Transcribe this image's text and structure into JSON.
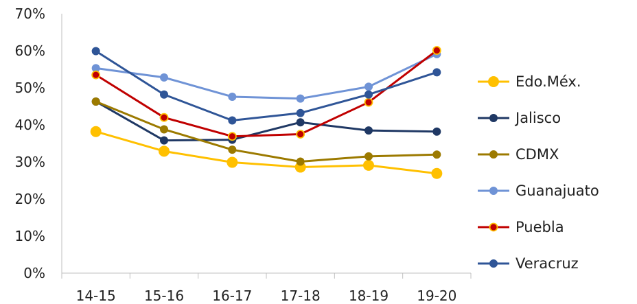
{
  "chart_data": {
    "type": "line",
    "categories": [
      "14-15",
      "15-16",
      "16-17",
      "17-18",
      "18-19",
      "19-20"
    ],
    "y_ticks": [
      "0%",
      "10%",
      "20%",
      "30%",
      "40%",
      "50%",
      "60%",
      "70%"
    ],
    "ylim": [
      0,
      70
    ],
    "grid": false,
    "legend_position": "right",
    "series": [
      {
        "name": "Edo.Méx.",
        "color": "#FFC000",
        "marker_fill": "#FFC000",
        "values": [
          38.2,
          32.9,
          29.9,
          28.6,
          29.1,
          26.9
        ]
      },
      {
        "name": "Jalisco",
        "color": "#1F3864",
        "marker_fill": "#1F3864",
        "values": [
          46.3,
          35.8,
          36.0,
          40.7,
          38.5,
          38.2
        ]
      },
      {
        "name": "CDMX",
        "color": "#9C7A00",
        "marker_fill": "#9C7A00",
        "values": [
          46.3,
          38.8,
          33.3,
          30.1,
          31.5,
          32.0
        ]
      },
      {
        "name": "Guanajuato",
        "color": "#6F93D6",
        "marker_fill": "#6F93D6",
        "values": [
          55.3,
          52.8,
          47.6,
          47.1,
          50.3,
          59.1
        ]
      },
      {
        "name": "Puebla",
        "color": "#C00000",
        "marker_fill": "#C00000",
        "marker_stroke": "#FFC000",
        "values": [
          53.5,
          42.0,
          36.9,
          37.5,
          46.1,
          60.1
        ]
      },
      {
        "name": "Veracruz",
        "color": "#2F5597",
        "marker_fill": "#2F5597",
        "values": [
          59.9,
          48.2,
          41.2,
          43.2,
          48.2,
          54.2
        ]
      }
    ]
  }
}
